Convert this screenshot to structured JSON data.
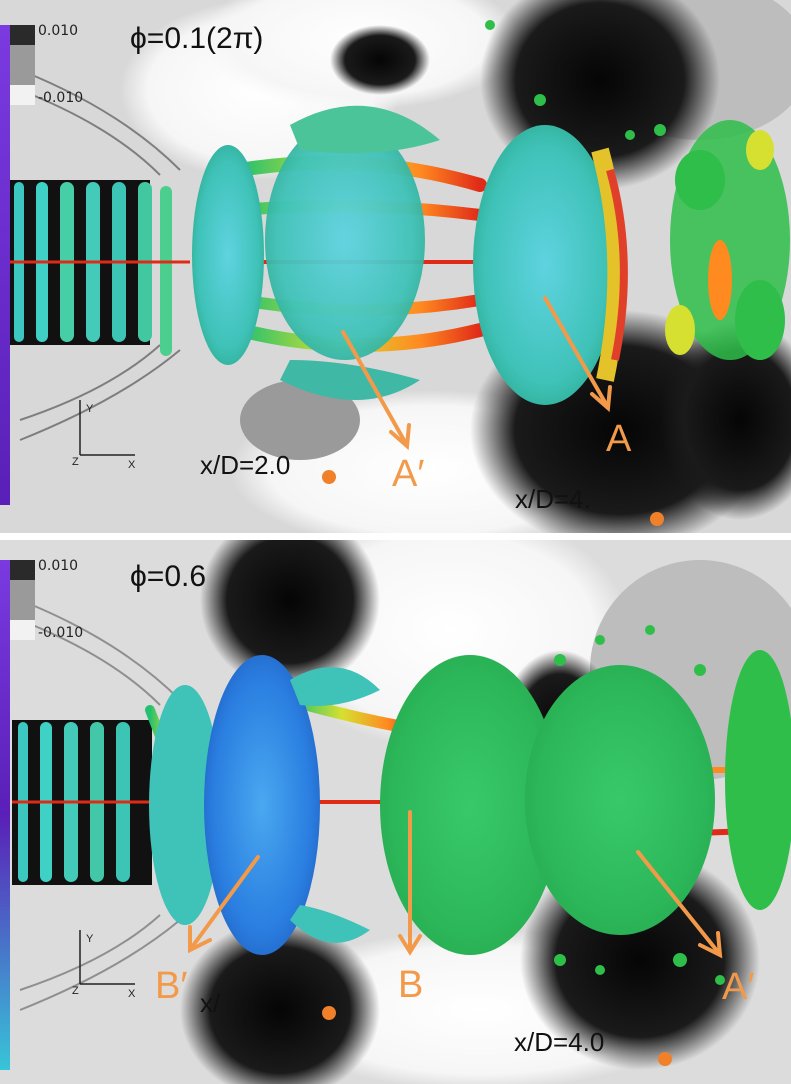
{
  "figure": {
    "panels": [
      {
        "phase_label": "ϕ=0.1(2π)",
        "colorbar": {
          "max_label": "0.010",
          "min_label": "-0.010"
        },
        "station_labels": [
          "x/D=2.0",
          "x/D=4."
        ],
        "markers": [
          "A′",
          "A"
        ]
      },
      {
        "phase_label": "ϕ=0.6",
        "colorbar": {
          "max_label": "0.010",
          "min_label": "-0.010"
        },
        "station_labels": [
          "x/",
          "x/D=4.0"
        ],
        "markers": [
          "B′",
          "B",
          "A′"
        ]
      }
    ],
    "colors": {
      "arrow": "#f29a4a",
      "station_dot": "#f0802a",
      "colorbar_purple": "#6a2bd0",
      "colorbar_cyan": "#38c4d8"
    }
  }
}
